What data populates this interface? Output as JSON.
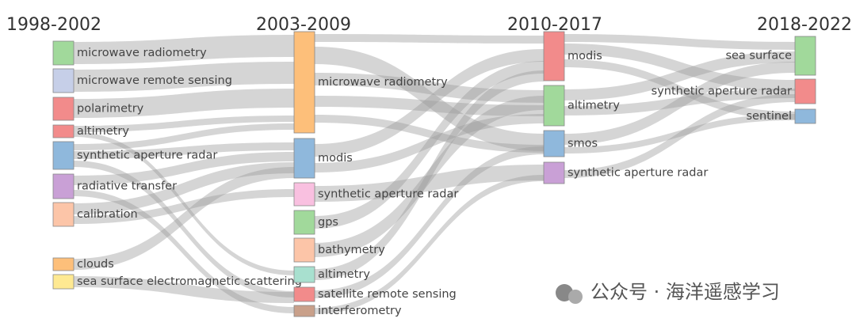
{
  "columns": [
    {
      "title": "1998-2002",
      "nodes": [
        "microwave radiometry",
        "microwave remote sensing",
        "polarimetry",
        "altimetry",
        "synthetic aperture radar",
        "radiative transfer",
        "calibration",
        "clouds",
        "sea surface electromagnetic scattering"
      ]
    },
    {
      "title": "2003-2009",
      "nodes": [
        "microwave radiometry",
        "modis",
        "synthetic aperture radar",
        "gps",
        "bathymetry",
        "altimetry",
        "satellite remote sensing",
        "interferometry"
      ]
    },
    {
      "title": "2010-2017",
      "nodes": [
        "modis",
        "altimetry",
        "smos",
        "synthetic aperture radar"
      ]
    },
    {
      "title": "2018-2022",
      "nodes": [
        "sea surface",
        "synthetic aperture radar",
        "sentinel"
      ]
    }
  ],
  "watermark": "公众号 · 海洋遥感学习"
}
